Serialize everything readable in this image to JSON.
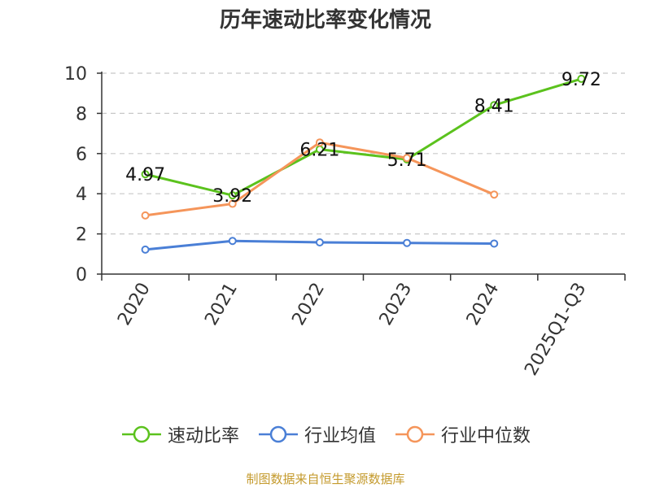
{
  "chart_data": {
    "type": "line",
    "title": "历年速动比率变化情况",
    "categories": [
      "2020",
      "2021",
      "2022",
      "2023",
      "2024",
      "2025Q1-Q3"
    ],
    "ylim": [
      0,
      10
    ],
    "yticks": [
      0,
      2,
      4,
      6,
      8,
      10
    ],
    "grid": true,
    "legend_position": "bottom",
    "series": [
      {
        "name": "速动比率",
        "color": "#5bc21d",
        "values": [
          4.97,
          3.92,
          6.21,
          5.71,
          8.41,
          9.72
        ],
        "show_labels": true
      },
      {
        "name": "行业均值",
        "color": "#4a7fd6",
        "values": [
          1.22,
          1.65,
          1.58,
          1.55,
          1.52,
          null
        ],
        "show_labels": false
      },
      {
        "name": "行业中位数",
        "color": "#f5955a",
        "values": [
          2.92,
          3.5,
          6.55,
          5.78,
          3.96,
          null
        ],
        "show_labels": false
      }
    ]
  },
  "source_note": "制图数据来自恒生聚源数据库"
}
